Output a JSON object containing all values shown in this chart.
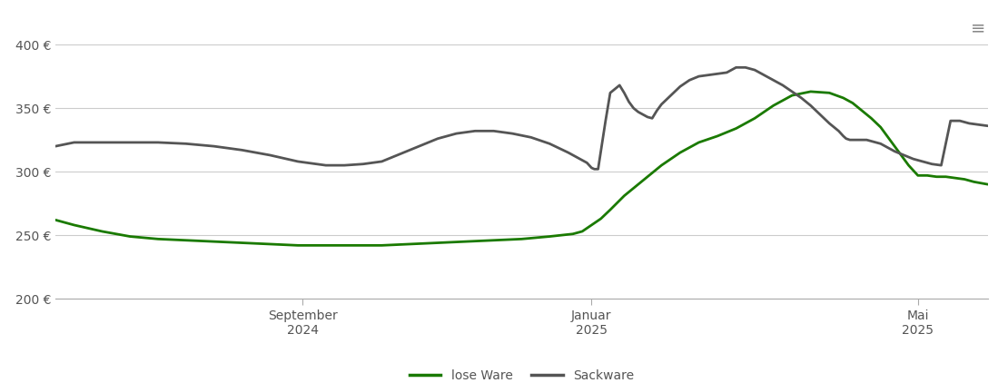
{
  "background_color": "#ffffff",
  "grid_color": "#cccccc",
  "ylim": [
    200,
    420
  ],
  "yticks": [
    200,
    250,
    300,
    350,
    400
  ],
  "ytick_labels": [
    "200 €",
    "250 €",
    "300 €",
    "350 €",
    "400 €"
  ],
  "line_lose_ware_color": "#1a7a00",
  "line_sackware_color": "#555555",
  "line_width": 2.0,
  "legend_labels": [
    "lose Ware",
    "Sackware"
  ],
  "x_tick_positions": [
    0.265,
    0.575,
    0.925
  ],
  "x_tick_labels_top": [
    "September",
    "Januar",
    "Mai"
  ],
  "x_tick_labels_bottom": [
    "2024",
    "2025",
    "2025"
  ],
  "lose_ware_x": [
    0.0,
    0.02,
    0.05,
    0.08,
    0.11,
    0.14,
    0.17,
    0.2,
    0.23,
    0.26,
    0.29,
    0.32,
    0.35,
    0.38,
    0.41,
    0.44,
    0.47,
    0.5,
    0.53,
    0.555,
    0.565,
    0.575,
    0.585,
    0.595,
    0.61,
    0.63,
    0.65,
    0.67,
    0.69,
    0.71,
    0.73,
    0.75,
    0.77,
    0.79,
    0.81,
    0.83,
    0.845,
    0.855,
    0.865,
    0.875,
    0.885,
    0.895,
    0.905,
    0.915,
    0.925,
    0.935,
    0.945,
    0.955,
    0.965,
    0.975,
    0.985,
    1.0
  ],
  "lose_ware_y": [
    262,
    258,
    253,
    249,
    247,
    246,
    245,
    244,
    243,
    242,
    242,
    242,
    242,
    243,
    244,
    245,
    246,
    247,
    249,
    251,
    253,
    258,
    263,
    270,
    281,
    293,
    305,
    315,
    323,
    328,
    334,
    342,
    352,
    360,
    363,
    362,
    358,
    354,
    348,
    342,
    335,
    325,
    315,
    305,
    297,
    297,
    296,
    296,
    295,
    294,
    292,
    290
  ],
  "sackware_x": [
    0.0,
    0.02,
    0.05,
    0.08,
    0.11,
    0.14,
    0.17,
    0.2,
    0.23,
    0.26,
    0.29,
    0.31,
    0.33,
    0.35,
    0.37,
    0.39,
    0.41,
    0.43,
    0.45,
    0.47,
    0.49,
    0.51,
    0.53,
    0.55,
    0.57,
    0.575,
    0.578,
    0.582,
    0.59,
    0.595,
    0.6,
    0.605,
    0.61,
    0.615,
    0.62,
    0.625,
    0.63,
    0.635,
    0.64,
    0.645,
    0.65,
    0.66,
    0.67,
    0.68,
    0.69,
    0.7,
    0.71,
    0.72,
    0.73,
    0.74,
    0.75,
    0.76,
    0.77,
    0.78,
    0.79,
    0.8,
    0.81,
    0.82,
    0.83,
    0.84,
    0.845,
    0.848,
    0.852,
    0.858,
    0.865,
    0.87,
    0.875,
    0.88,
    0.885,
    0.89,
    0.895,
    0.9,
    0.91,
    0.92,
    0.93,
    0.94,
    0.95,
    0.96,
    0.97,
    0.98,
    0.99,
    1.0
  ],
  "sackware_y": [
    320,
    323,
    323,
    323,
    323,
    322,
    320,
    317,
    313,
    308,
    305,
    305,
    306,
    308,
    314,
    320,
    326,
    330,
    332,
    332,
    330,
    327,
    322,
    315,
    307,
    303,
    302,
    302,
    340,
    362,
    365,
    368,
    362,
    355,
    350,
    347,
    345,
    343,
    342,
    348,
    353,
    360,
    367,
    372,
    375,
    376,
    377,
    378,
    382,
    382,
    380,
    376,
    372,
    368,
    363,
    358,
    352,
    345,
    338,
    332,
    328,
    326,
    325,
    325,
    325,
    325,
    324,
    323,
    322,
    320,
    318,
    316,
    313,
    310,
    308,
    306,
    305,
    340,
    340,
    338,
    337,
    336
  ]
}
